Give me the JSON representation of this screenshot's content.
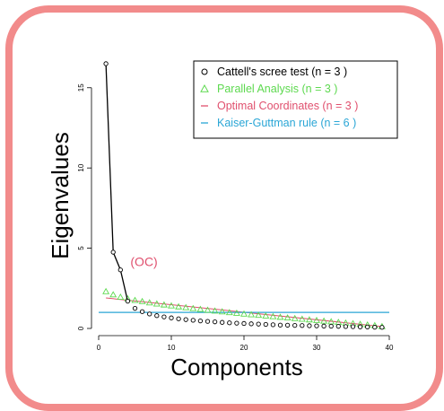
{
  "chart_data": {
    "type": "scatter",
    "title": "",
    "xlabel": "Components",
    "ylabel": "Eigenvalues",
    "xlim": [
      0,
      40
    ],
    "ylim": [
      0,
      17
    ],
    "x_ticks": [
      "0",
      "10",
      "20",
      "30",
      "40"
    ],
    "y_ticks": [
      "0",
      "5",
      "10",
      "15"
    ],
    "legend_position": "top-right",
    "grid": false,
    "legend": [
      {
        "symbol": "○",
        "label": "Cattell's scree test (n =  3 )",
        "color": "#000000"
      },
      {
        "symbol": "△",
        "label": "Parallel Analysis (n =  3 )",
        "color": "#5dd94f"
      },
      {
        "symbol": "—",
        "label": "Optimal Coordinates (n =  3 )",
        "color": "#e0506e"
      },
      {
        "symbol": "—",
        "label": "Kaiser-Guttman rule (n =  6 )",
        "color": "#2aa6d6"
      }
    ],
    "annotation": {
      "text": "(OC)",
      "x": 4,
      "y": 3.65,
      "color": "#e0506e"
    },
    "series": [
      {
        "name": "Eigenvalues",
        "x": [
          1,
          2,
          3,
          4,
          5,
          6,
          7,
          8,
          9,
          10,
          11,
          12,
          13,
          14,
          15,
          16,
          17,
          18,
          19,
          20,
          21,
          22,
          23,
          24,
          25,
          26,
          27,
          28,
          29,
          30,
          31,
          32,
          33,
          34,
          35,
          36,
          37,
          38,
          39
        ],
        "y": [
          16.5,
          4.75,
          3.65,
          1.7,
          1.25,
          1.05,
          0.9,
          0.8,
          0.72,
          0.66,
          0.6,
          0.55,
          0.51,
          0.47,
          0.44,
          0.41,
          0.38,
          0.35,
          0.33,
          0.31,
          0.29,
          0.27,
          0.25,
          0.23,
          0.21,
          0.2,
          0.19,
          0.18,
          0.17,
          0.16,
          0.15,
          0.14,
          0.13,
          0.12,
          0.11,
          0.1,
          0.09,
          0.08,
          0.07
        ]
      },
      {
        "name": "Parallel Analysis",
        "x": [
          1,
          2,
          3,
          4,
          5,
          6,
          7,
          8,
          9,
          10,
          11,
          12,
          13,
          14,
          15,
          16,
          17,
          18,
          19,
          20,
          21,
          22,
          23,
          24,
          25,
          26,
          27,
          28,
          29,
          30,
          31,
          32,
          33,
          34,
          35,
          36,
          37,
          38,
          39
        ],
        "y": [
          2.3,
          2.1,
          1.95,
          1.85,
          1.75,
          1.68,
          1.6,
          1.53,
          1.47,
          1.41,
          1.35,
          1.3,
          1.24,
          1.19,
          1.14,
          1.09,
          1.04,
          0.99,
          0.95,
          0.9,
          0.86,
          0.82,
          0.78,
          0.74,
          0.7,
          0.66,
          0.62,
          0.58,
          0.54,
          0.5,
          0.46,
          0.42,
          0.38,
          0.34,
          0.3,
          0.26,
          0.22,
          0.18,
          0.12
        ]
      },
      {
        "name": "Optimal Coordinates",
        "x": [
          1,
          39
        ],
        "y": [
          1.9,
          0.12
        ]
      },
      {
        "name": "Kaiser-Guttman rule",
        "y": [
          1.0
        ]
      }
    ]
  }
}
